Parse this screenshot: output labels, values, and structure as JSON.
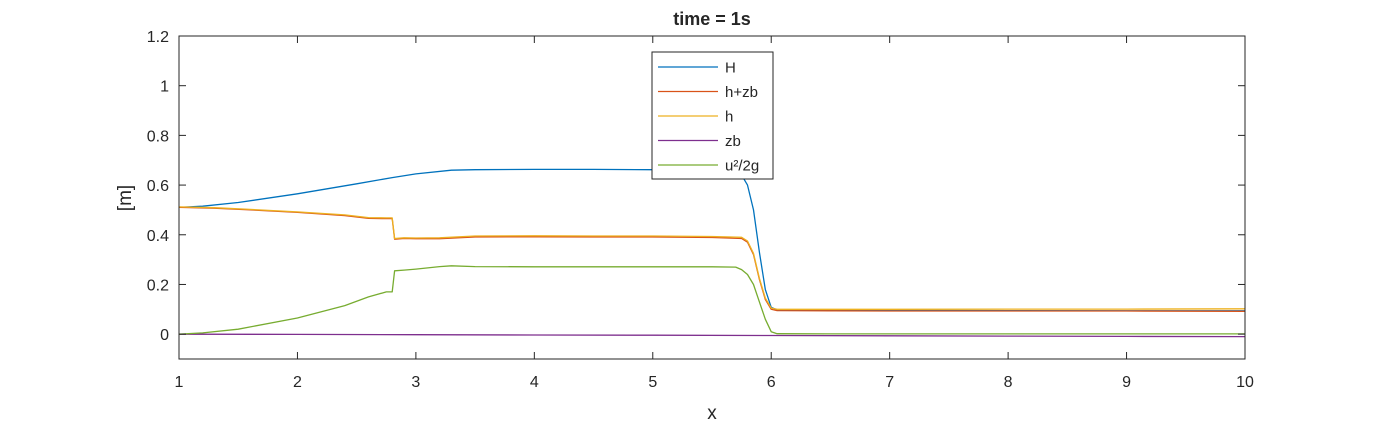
{
  "chart_data": {
    "type": "line",
    "title": "time = 1s",
    "xlabel": "x",
    "ylabel": "[m]",
    "xlim": [
      1,
      10
    ],
    "ylim": [
      -0.1,
      1.2
    ],
    "xticks": [
      "1",
      "2",
      "3",
      "4",
      "5",
      "6",
      "7",
      "8",
      "9",
      "10"
    ],
    "yticks": [
      "0",
      "0.2",
      "0.4",
      "0.6",
      "0.8",
      "1",
      "1.2"
    ],
    "grid": false,
    "legend_position": "top-center",
    "series": [
      {
        "name": "H",
        "color": "#0072BD",
        "x": [
          1.0,
          1.2,
          1.5,
          2.0,
          2.5,
          2.8,
          3.0,
          3.3,
          3.5,
          4.0,
          4.5,
          5.0,
          5.5,
          5.7,
          5.75,
          5.8,
          5.85,
          5.9,
          5.95,
          6.0,
          6.05,
          6.5,
          7.0,
          8.0,
          9.0,
          10.0
        ],
        "y": [
          0.51,
          0.515,
          0.53,
          0.565,
          0.605,
          0.63,
          0.645,
          0.66,
          0.662,
          0.663,
          0.663,
          0.662,
          0.66,
          0.655,
          0.64,
          0.6,
          0.5,
          0.33,
          0.18,
          0.108,
          0.098,
          0.097,
          0.096,
          0.095,
          0.094,
          0.094
        ]
      },
      {
        "name": "h+zb",
        "color": "#D95319",
        "x": [
          1.0,
          1.3,
          1.6,
          2.0,
          2.4,
          2.6,
          2.75,
          2.8,
          2.82,
          2.9,
          3.0,
          3.2,
          3.5,
          4.0,
          4.5,
          5.0,
          5.5,
          5.75,
          5.8,
          5.85,
          5.9,
          5.95,
          6.0,
          6.05,
          6.5,
          7.0,
          8.0,
          9.0,
          10.0
        ],
        "y": [
          0.51,
          0.507,
          0.5,
          0.49,
          0.477,
          0.466,
          0.465,
          0.465,
          0.382,
          0.385,
          0.384,
          0.384,
          0.391,
          0.392,
          0.391,
          0.391,
          0.389,
          0.385,
          0.37,
          0.32,
          0.22,
          0.14,
          0.1,
          0.095,
          0.094,
          0.093,
          0.093,
          0.093,
          0.092
        ]
      },
      {
        "name": "h",
        "color": "#EDB120",
        "x": [
          1.0,
          1.3,
          1.6,
          2.0,
          2.4,
          2.6,
          2.75,
          2.8,
          2.82,
          2.9,
          3.0,
          3.2,
          3.5,
          4.0,
          4.5,
          5.0,
          5.5,
          5.75,
          5.8,
          5.85,
          5.9,
          5.95,
          6.0,
          6.05,
          6.5,
          7.0,
          8.0,
          9.0,
          10.0
        ],
        "y": [
          0.512,
          0.509,
          0.502,
          0.492,
          0.48,
          0.469,
          0.468,
          0.468,
          0.385,
          0.388,
          0.387,
          0.388,
          0.395,
          0.396,
          0.395,
          0.395,
          0.393,
          0.39,
          0.375,
          0.325,
          0.225,
          0.145,
          0.105,
          0.1,
          0.1,
          0.1,
          0.101,
          0.101,
          0.102
        ]
      },
      {
        "name": "zb",
        "color": "#7E2F8E",
        "x": [
          1.0,
          2.0,
          3.0,
          4.0,
          5.0,
          6.0,
          7.0,
          8.0,
          9.0,
          10.0
        ],
        "y": [
          0.0,
          -0.0011,
          -0.0022,
          -0.0033,
          -0.0044,
          -0.0056,
          -0.0067,
          -0.0078,
          -0.0089,
          -0.01
        ]
      },
      {
        "name": "u²/2g",
        "color": "#77AC30",
        "x": [
          1.0,
          1.2,
          1.5,
          2.0,
          2.4,
          2.6,
          2.75,
          2.8,
          2.82,
          2.9,
          3.0,
          3.2,
          3.3,
          3.5,
          4.0,
          4.5,
          5.0,
          5.5,
          5.7,
          5.75,
          5.8,
          5.85,
          5.9,
          5.95,
          6.0,
          6.05,
          6.5,
          7.0,
          8.0,
          9.0,
          10.0
        ],
        "y": [
          0.0,
          0.005,
          0.02,
          0.065,
          0.115,
          0.15,
          0.17,
          0.17,
          0.255,
          0.258,
          0.262,
          0.272,
          0.275,
          0.272,
          0.271,
          0.271,
          0.271,
          0.271,
          0.27,
          0.26,
          0.24,
          0.2,
          0.13,
          0.06,
          0.01,
          0.002,
          0.001,
          0.001,
          0.001,
          0.001,
          0.001
        ]
      }
    ]
  }
}
